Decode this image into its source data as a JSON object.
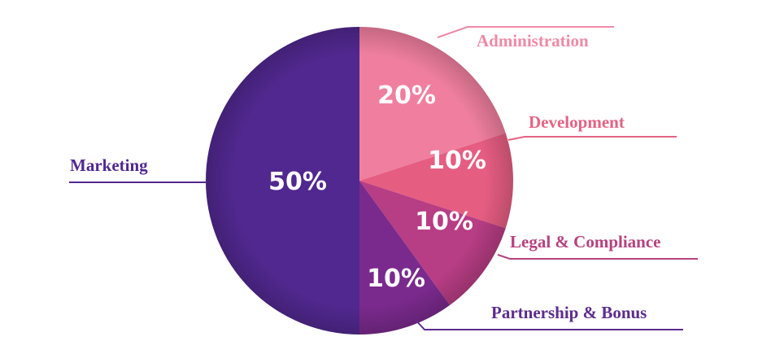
{
  "chart_data": {
    "type": "pie",
    "slices": [
      {
        "label": "Administration",
        "value": 20,
        "value_label": "20%",
        "color": "#f07f9f"
      },
      {
        "label": "Development",
        "value": 10,
        "value_label": "10%",
        "color": "#e65d82"
      },
      {
        "label": "Legal & Compliance",
        "value": 10,
        "value_label": "10%",
        "color": "#b73d84"
      },
      {
        "label": "Partnership & Bonus",
        "value": 10,
        "value_label": "10%",
        "color": "#7a2a8d"
      },
      {
        "label": "Marketing",
        "value": 50,
        "value_label": "50%",
        "color": "#51288f"
      }
    ],
    "label_colors": [
      "#ee8aa6",
      "#e46384",
      "#b6427f",
      "#5c2c8c",
      "#51288f"
    ],
    "start": "top, clockwise",
    "legend": "callout lines"
  }
}
